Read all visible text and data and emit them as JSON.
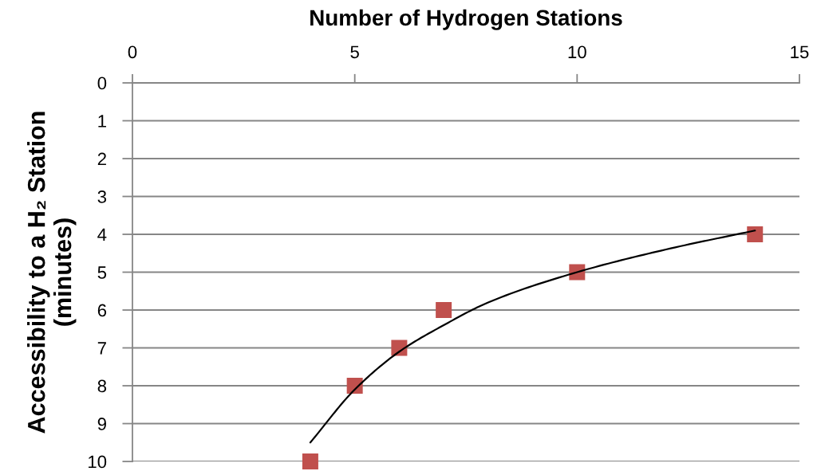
{
  "chart_data": {
    "type": "scatter",
    "xlabel": "Number of Hydrogen Stations",
    "ylabel": "Accessibility to a H₂ Station\n(minutes)",
    "xlim": [
      0,
      15
    ],
    "xticks": [
      0,
      5,
      10,
      15
    ],
    "ylim": [
      10,
      0
    ],
    "yticks": [
      0,
      1,
      2,
      3,
      4,
      5,
      6,
      7,
      8,
      9,
      10
    ],
    "grid": "y",
    "series": [
      {
        "color": "#c0504d",
        "marker": "square",
        "x": [
          4,
          5,
          6,
          7,
          10,
          14
        ],
        "values": [
          10,
          8,
          7,
          6,
          5,
          4
        ]
      },
      {
        "type": "line",
        "color": "#000000",
        "x": [
          4,
          5,
          6,
          7,
          8,
          10,
          12,
          14
        ],
        "values": [
          9.5,
          8.1,
          7.1,
          6.4,
          5.8,
          5.0,
          4.4,
          3.9
        ]
      }
    ]
  }
}
